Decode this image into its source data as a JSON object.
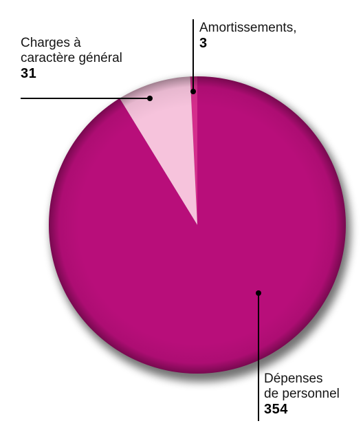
{
  "chart_data": {
    "type": "pie",
    "slices": [
      {
        "label_lines": [
          "Dépenses",
          "de personnel"
        ],
        "value": 354,
        "value_label": "354",
        "color": "#b80e7a"
      },
      {
        "label_lines": [
          "Charges à",
          "caractère général"
        ],
        "value": 31,
        "value_label": "31",
        "color": "#f6c3dc"
      },
      {
        "label_lines": [
          "Amortissements,"
        ],
        "value": 3,
        "value_label": "3",
        "color": "#d42e8c"
      }
    ],
    "legend": "none"
  }
}
